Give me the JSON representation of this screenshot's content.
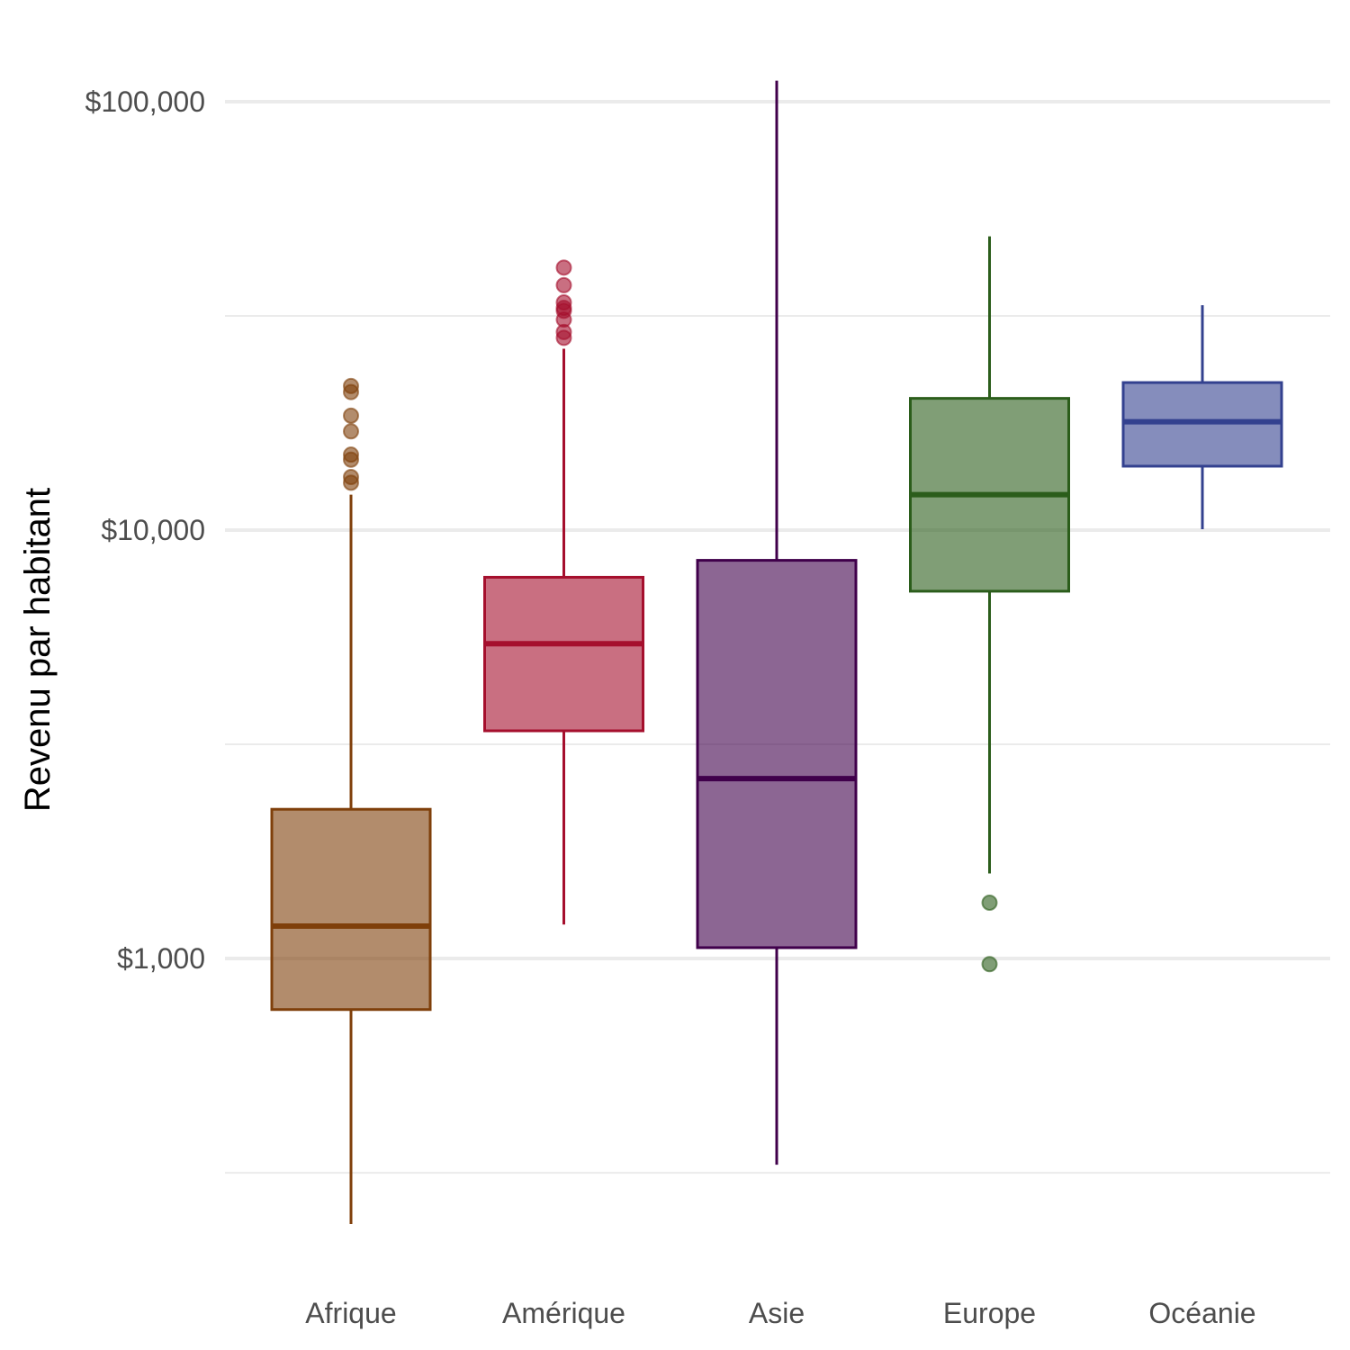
{
  "chart_data": {
    "type": "box",
    "title": "",
    "xlabel": "",
    "ylabel": "Revenu par habitant",
    "y_scale": "log10",
    "ylim": [
      200,
      130000
    ],
    "grid": {
      "major_y": true,
      "minor_y": true,
      "x": false
    },
    "legend": "none",
    "y_ticks": [
      {
        "value": 1000,
        "label": "$1,000"
      },
      {
        "value": 10000,
        "label": "$10,000"
      },
      {
        "value": 100000,
        "label": "$100,000"
      }
    ],
    "y_minor_ticks": [
      316,
      3162,
      31623
    ],
    "categories": [
      "Afrique",
      "Amérique",
      "Asie",
      "Europe",
      "Océanie"
    ],
    "series": [
      {
        "category": "Afrique",
        "color": "#7f3f0a",
        "whisker_low": 240,
        "q1": 760,
        "median": 1190,
        "q3": 2230,
        "whisker_high": 12100,
        "outliers": [
          12900,
          13300,
          14600,
          15000,
          17000,
          18500,
          21000,
          21700
        ]
      },
      {
        "category": "Amérique",
        "color": "#a50f2d",
        "whisker_low": 1200,
        "q1": 3400,
        "median": 5430,
        "q3": 7760,
        "whisker_high": 26500,
        "outliers": [
          28100,
          29000,
          31000,
          32500,
          33000,
          34000,
          37300,
          41000
        ]
      },
      {
        "category": "Asie",
        "color": "#40004b",
        "whisker_low": 330,
        "q1": 1060,
        "median": 2630,
        "q3": 8500,
        "whisker_high": 112000,
        "outliers": []
      },
      {
        "category": "Europe",
        "color": "#2b5d1b",
        "whisker_low": 1580,
        "q1": 7200,
        "median": 12100,
        "q3": 20300,
        "whisker_high": 48500,
        "outliers": [
          970,
          1350
        ]
      },
      {
        "category": "Océanie",
        "color": "#33418f",
        "whisker_low": 10050,
        "q1": 14100,
        "median": 17900,
        "q3": 22100,
        "whisker_high": 33500,
        "outliers": []
      }
    ]
  }
}
